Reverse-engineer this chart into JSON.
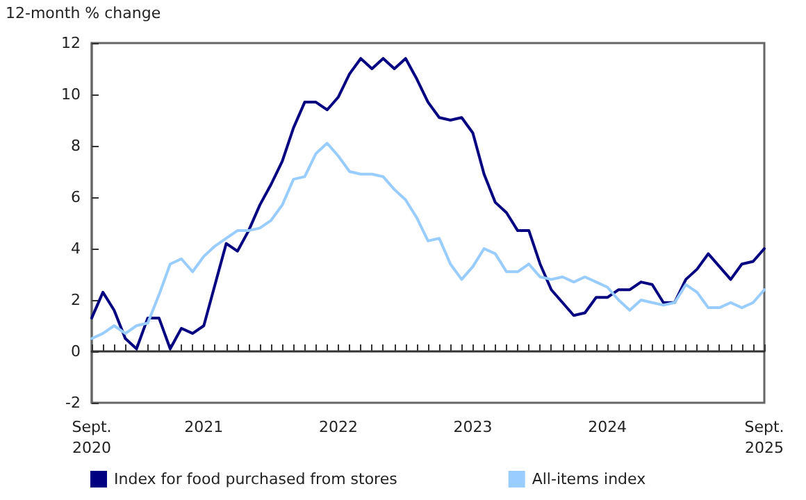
{
  "chart_data": {
    "type": "line",
    "ylabel": "12-month % change",
    "categories": [
      "Sept.\n2020",
      null,
      null,
      null,
      null,
      null,
      null,
      null,
      null,
      null,
      "2021",
      null,
      null,
      null,
      null,
      null,
      null,
      null,
      null,
      null,
      null,
      null,
      "2022",
      null,
      null,
      null,
      null,
      null,
      null,
      null,
      null,
      null,
      null,
      null,
      "2023",
      null,
      null,
      null,
      null,
      null,
      null,
      null,
      null,
      null,
      null,
      null,
      "2024",
      null,
      null,
      null,
      null,
      null,
      null,
      null,
      null,
      null,
      null,
      null,
      null,
      null,
      "Sept.\n2025"
    ],
    "series": [
      {
        "name": "Index for food purchased from stores",
        "color": "#000080",
        "values": [
          1.3,
          2.3,
          1.6,
          0.5,
          0.1,
          1.3,
          1.3,
          0.1,
          0.9,
          0.7,
          1.0,
          2.6,
          4.2,
          3.9,
          4.7,
          5.7,
          6.5,
          7.4,
          8.7,
          9.7,
          9.7,
          9.4,
          9.9,
          10.8,
          11.4,
          11.0,
          11.4,
          11.0,
          11.4,
          10.6,
          9.7,
          9.1,
          9.0,
          9.1,
          8.5,
          6.9,
          5.8,
          5.4,
          4.7,
          4.7,
          3.4,
          2.4,
          1.9,
          1.4,
          1.5,
          2.1,
          2.1,
          2.4,
          2.4,
          2.7,
          2.6,
          1.9,
          1.9,
          2.8,
          3.2,
          3.8,
          3.3,
          2.8,
          3.4,
          3.5,
          4.0
        ]
      },
      {
        "name": "All-items index",
        "color": "#99ccff",
        "values": [
          0.5,
          0.7,
          1.0,
          0.7,
          1.0,
          1.1,
          2.2,
          3.4,
          3.6,
          3.1,
          3.7,
          4.1,
          4.4,
          4.7,
          4.7,
          4.8,
          5.1,
          5.7,
          6.7,
          6.8,
          7.7,
          8.1,
          7.6,
          7.0,
          6.9,
          6.9,
          6.8,
          6.3,
          5.9,
          5.2,
          4.3,
          4.4,
          3.4,
          2.8,
          3.3,
          4.0,
          3.8,
          3.1,
          3.1,
          3.4,
          2.9,
          2.8,
          2.9,
          2.7,
          2.9,
          2.7,
          2.5,
          2.0,
          1.6,
          2.0,
          1.9,
          1.8,
          1.9,
          2.6,
          2.3,
          1.7,
          1.7,
          1.9,
          1.7,
          1.9,
          2.4
        ]
      }
    ],
    "ylim": [
      -2,
      12
    ],
    "yticks": [
      -2,
      0,
      2,
      4,
      6,
      8,
      10,
      12
    ],
    "legend": "bottom",
    "marker": "none",
    "line_style": "solid"
  }
}
